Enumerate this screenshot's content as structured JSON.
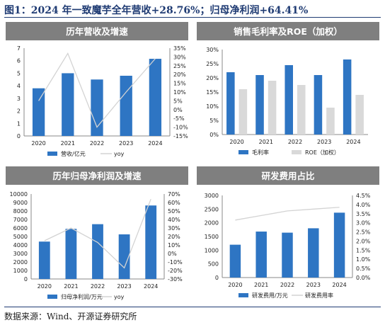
{
  "figure_title": "图1：2024 年一致魔芋全年营收+28.76%；归母净利润+64.41%",
  "source": "数据来源：Wind、开源证券研究所",
  "colors": {
    "header_bg": "#7F7F7F",
    "bar_blue": "#2E75C3",
    "bar_gray": "#D9D9D9",
    "line_gray": "#D3D3D3",
    "title_navy": "#1F3B73"
  },
  "chart_data": [
    {
      "type": "bar",
      "title": "历年营收及增速",
      "categories": [
        "2020",
        "2021",
        "2022",
        "2023",
        "2024"
      ],
      "series": [
        {
          "name": "营收/亿元",
          "type": "bar",
          "axis": "left",
          "color": "#2E75C3",
          "values": [
            3.8,
            5.0,
            4.5,
            4.8,
            6.15
          ]
        },
        {
          "name": "yoy",
          "type": "line",
          "axis": "right",
          "color": "#D3D3D3",
          "values": [
            5,
            32,
            -10,
            10,
            29
          ]
        }
      ],
      "left_axis": {
        "min": 0,
        "max": 7,
        "step": 1,
        "ticks": [
          "0",
          "1",
          "2",
          "3",
          "4",
          "5",
          "6",
          "7"
        ]
      },
      "right_axis": {
        "min": -15,
        "max": 35,
        "step": 5,
        "ticks": [
          "-15%",
          "-10%",
          "-5%",
          "0%",
          "5%",
          "10%",
          "15%",
          "20%",
          "25%",
          "30%",
          "35%"
        ]
      }
    },
    {
      "type": "bar",
      "title": "销售毛利率及ROE（加权）",
      "categories": [
        "2020",
        "2021",
        "2022",
        "2023",
        "2024"
      ],
      "series": [
        {
          "name": "毛利率",
          "type": "bar",
          "axis": "left",
          "color": "#2E75C3",
          "values": [
            22,
            21,
            24.5,
            21,
            26.5
          ]
        },
        {
          "name": "ROE（加权）",
          "type": "bar",
          "axis": "left",
          "color": "#D9D9D9",
          "values": [
            16,
            19,
            17.5,
            9.5,
            14
          ]
        }
      ],
      "left_axis": {
        "min": 0,
        "max": 30,
        "step": 5,
        "ticks": [
          "0%",
          "5%",
          "10%",
          "15%",
          "20%",
          "25%",
          "30%"
        ]
      }
    },
    {
      "type": "bar",
      "title": "历年归母净利润及增速",
      "categories": [
        "2020",
        "2021",
        "2022",
        "2023",
        "2024"
      ],
      "series": [
        {
          "name": "归母净利润/万元",
          "type": "bar",
          "axis": "left",
          "color": "#2E75C3",
          "values": [
            4400,
            5900,
            6450,
            5250,
            8650
          ]
        },
        {
          "name": "yoy",
          "type": "line",
          "axis": "right",
          "color": "#D3D3D3",
          "values": [
            15,
            30,
            13,
            -17,
            64
          ]
        }
      ],
      "left_axis": {
        "min": 0,
        "max": 10000,
        "step": 1000,
        "ticks": [
          "0",
          "1000",
          "2000",
          "3000",
          "4000",
          "5000",
          "6000",
          "7000",
          "8000",
          "9000",
          "10000"
        ]
      },
      "right_axis": {
        "min": -30,
        "max": 70,
        "step": 10,
        "ticks": [
          "-30%",
          "-20%",
          "-10%",
          "0%",
          "10%",
          "20%",
          "30%",
          "40%",
          "50%",
          "60%",
          "70%"
        ]
      }
    },
    {
      "type": "bar",
      "title": "研发费用占比",
      "categories": [
        "2020",
        "2021",
        "2022",
        "2023",
        "2024"
      ],
      "series": [
        {
          "name": "研发费用/万元",
          "type": "bar",
          "axis": "left",
          "color": "#2E75C3",
          "values": [
            1200,
            1680,
            1640,
            1800,
            2370
          ]
        },
        {
          "name": "研发费用率",
          "type": "line",
          "axis": "right",
          "color": "#D3D3D3",
          "values": [
            3.15,
            3.4,
            3.65,
            3.75,
            3.85
          ]
        }
      ],
      "left_axis": {
        "min": 0,
        "max": 3000,
        "step": 500,
        "ticks": [
          "0",
          "500",
          "1000",
          "1500",
          "2000",
          "2500",
          "3000"
        ]
      },
      "right_axis": {
        "min": 0,
        "max": 4.5,
        "step": 0.5,
        "ticks": [
          "0.0%",
          "0.5%",
          "1.0%",
          "1.5%",
          "2.0%",
          "2.5%",
          "3.0%",
          "3.5%",
          "4.0%",
          "4.5%"
        ]
      }
    }
  ]
}
